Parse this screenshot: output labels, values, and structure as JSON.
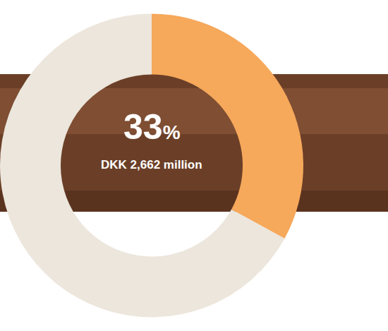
{
  "chart_data": {
    "type": "donut",
    "values": [
      33,
      67
    ],
    "colors": [
      "#f6a85b",
      "#ece6dc"
    ],
    "annotations": [
      "33%",
      "DKK 2,662 million"
    ]
  }
}
